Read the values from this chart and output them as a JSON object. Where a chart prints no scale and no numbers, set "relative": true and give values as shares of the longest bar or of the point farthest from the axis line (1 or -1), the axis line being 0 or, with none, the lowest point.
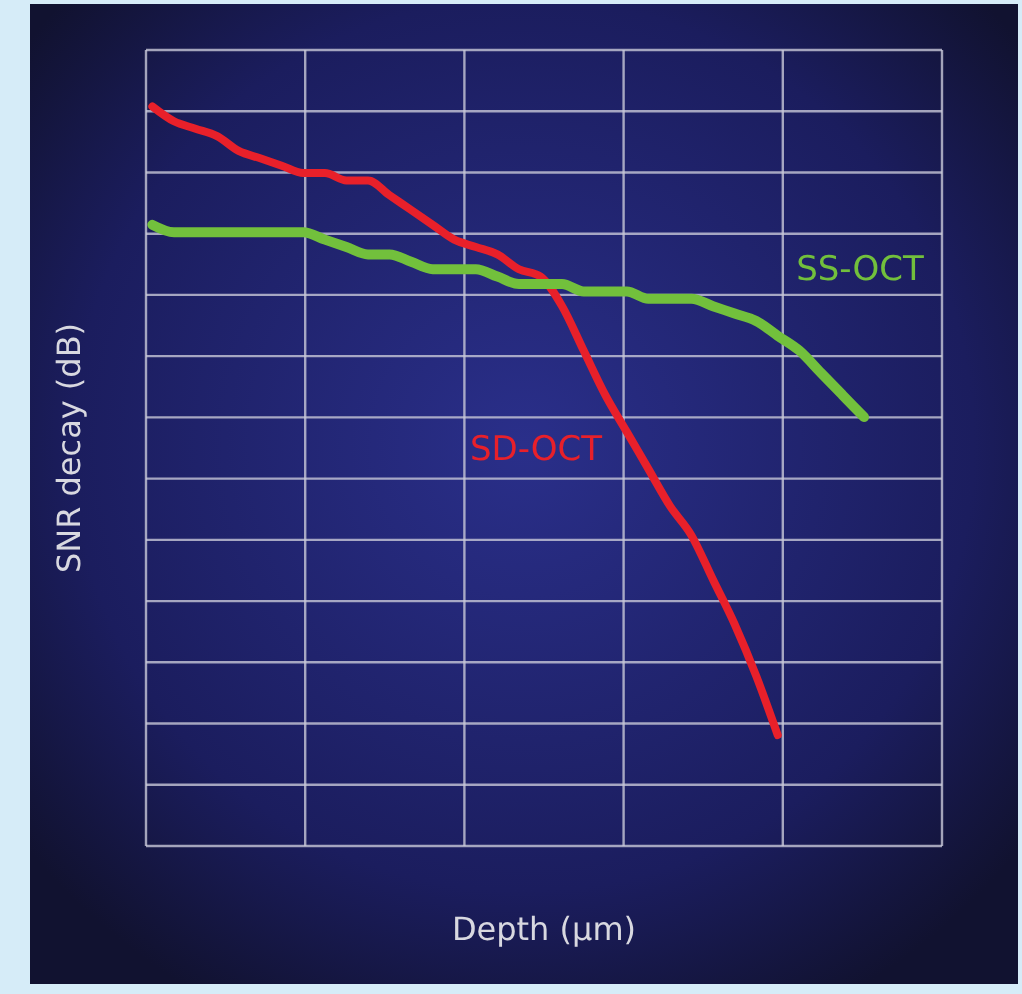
{
  "chart_data": {
    "type": "line",
    "xlabel": "Depth (µm)",
    "ylabel": "SNR decay (dB)",
    "relative": true,
    "grid": true,
    "marker": "none",
    "line_style": "solid",
    "categories": [
      null,
      null,
      null,
      null,
      null,
      null,
      null,
      null,
      null,
      null,
      null,
      null,
      null,
      null,
      null,
      null,
      null,
      null,
      null,
      null,
      null,
      null,
      null,
      null,
      null,
      null,
      null,
      null,
      null,
      null,
      null,
      null,
      null,
      null
    ],
    "series": [
      {
        "name": "SD-OCT",
        "color": "#e8202a",
        "values": [
          1.0,
          0.98,
          0.97,
          0.96,
          0.94,
          0.93,
          0.92,
          0.91,
          0.91,
          0.9,
          0.9,
          0.88,
          0.86,
          0.84,
          0.82,
          0.81,
          0.8,
          0.78,
          0.77,
          0.73,
          0.67,
          0.61,
          0.56,
          0.51,
          0.46,
          0.42,
          0.36,
          0.3,
          0.23,
          0.15,
          null,
          null,
          null,
          null
        ]
      },
      {
        "name": "SS-OCT",
        "color": "#72c03c",
        "values": [
          0.84,
          0.83,
          0.83,
          0.83,
          0.83,
          0.83,
          0.83,
          0.83,
          0.82,
          0.81,
          0.8,
          0.8,
          0.79,
          0.78,
          0.78,
          0.78,
          0.77,
          0.76,
          0.76,
          0.76,
          0.75,
          0.75,
          0.75,
          0.74,
          0.74,
          0.74,
          0.73,
          0.72,
          0.71,
          0.69,
          0.67,
          0.64,
          0.61,
          0.58
        ]
      }
    ]
  }
}
